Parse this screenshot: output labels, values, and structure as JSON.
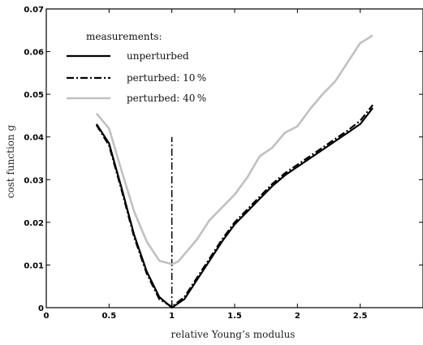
{
  "chart_data": {
    "type": "line",
    "xlabel": "relative Young’s modulus",
    "ylabel": "cost function g",
    "xlim": [
      0,
      3
    ],
    "ylim": [
      0,
      0.07
    ],
    "x_ticks": [
      0,
      0.5,
      1,
      1.5,
      2,
      2.5
    ],
    "x_tick_labels": [
      "0",
      "0.5",
      "1",
      "1.5",
      "2",
      "2.5"
    ],
    "y_ticks": [
      0,
      0.01,
      0.02,
      0.03,
      0.04,
      0.05,
      0.06,
      0.07
    ],
    "y_tick_labels": [
      "0",
      "0.01",
      "0.02",
      "0.03",
      "0.04",
      "0.05",
      "0.06",
      "0.07"
    ],
    "legend": {
      "title": "measurements:",
      "placement": "top-left",
      "entries": [
        "unperturbed",
        "perturbed: 10 %",
        "perturbed: 40 %"
      ]
    },
    "series": [
      {
        "name": "unperturbed",
        "style": "solid",
        "color": "#000000",
        "points": [
          [
            0.4,
            0.043
          ],
          [
            0.5,
            0.0385
          ],
          [
            0.6,
            0.028
          ],
          [
            0.7,
            0.017
          ],
          [
            0.8,
            0.0085
          ],
          [
            0.9,
            0.0025
          ],
          [
            1.0,
            0.0
          ],
          [
            1.1,
            0.002
          ],
          [
            1.2,
            0.0065
          ],
          [
            1.3,
            0.011
          ],
          [
            1.4,
            0.0155
          ],
          [
            1.5,
            0.0195
          ],
          [
            1.6,
            0.0225
          ],
          [
            1.7,
            0.0255
          ],
          [
            1.8,
            0.0285
          ],
          [
            1.9,
            0.031
          ],
          [
            2.0,
            0.033
          ],
          [
            2.1,
            0.035
          ],
          [
            2.2,
            0.037
          ],
          [
            2.3,
            0.039
          ],
          [
            2.4,
            0.041
          ],
          [
            2.5,
            0.043
          ],
          [
            2.6,
            0.0468
          ]
        ]
      },
      {
        "name": "perturbed: 10 %",
        "style": "dashdot",
        "color": "#000000",
        "points": [
          [
            0.4,
            0.0428
          ],
          [
            0.5,
            0.038
          ],
          [
            0.6,
            0.0275
          ],
          [
            0.7,
            0.0165
          ],
          [
            0.8,
            0.008
          ],
          [
            0.9,
            0.002
          ],
          [
            1.0,
            0.0002
          ],
          [
            1.1,
            0.0025
          ],
          [
            1.2,
            0.007
          ],
          [
            1.3,
            0.0115
          ],
          [
            1.4,
            0.016
          ],
          [
            1.5,
            0.02
          ],
          [
            1.6,
            0.023
          ],
          [
            1.7,
            0.026
          ],
          [
            1.8,
            0.029
          ],
          [
            1.9,
            0.0315
          ],
          [
            2.0,
            0.0335
          ],
          [
            2.1,
            0.0355
          ],
          [
            2.2,
            0.0375
          ],
          [
            2.3,
            0.0395
          ],
          [
            2.4,
            0.0415
          ],
          [
            2.5,
            0.0438
          ],
          [
            2.6,
            0.0475
          ]
        ]
      },
      {
        "name": "perturbed: 40 %",
        "style": "solid",
        "color": "#c0c0c0",
        "points": [
          [
            0.4,
            0.0455
          ],
          [
            0.5,
            0.042
          ],
          [
            0.6,
            0.032
          ],
          [
            0.7,
            0.0225
          ],
          [
            0.8,
            0.0155
          ],
          [
            0.9,
            0.011
          ],
          [
            1.0,
            0.0102
          ],
          [
            1.05,
            0.0108
          ],
          [
            1.1,
            0.0125
          ],
          [
            1.2,
            0.016
          ],
          [
            1.3,
            0.0205
          ],
          [
            1.4,
            0.0235
          ],
          [
            1.5,
            0.0265
          ],
          [
            1.6,
            0.0305
          ],
          [
            1.7,
            0.0355
          ],
          [
            1.8,
            0.0375
          ],
          [
            1.9,
            0.041
          ],
          [
            2.0,
            0.0425
          ],
          [
            2.1,
            0.0465
          ],
          [
            2.2,
            0.05
          ],
          [
            2.3,
            0.053
          ],
          [
            2.4,
            0.0575
          ],
          [
            2.5,
            0.062
          ],
          [
            2.6,
            0.0638
          ]
        ]
      }
    ],
    "annotations": [
      {
        "type": "vertical_line",
        "x": 1.0,
        "y_range": [
          0,
          0.04
        ],
        "style": "dashdot",
        "color": "#000000"
      }
    ]
  }
}
